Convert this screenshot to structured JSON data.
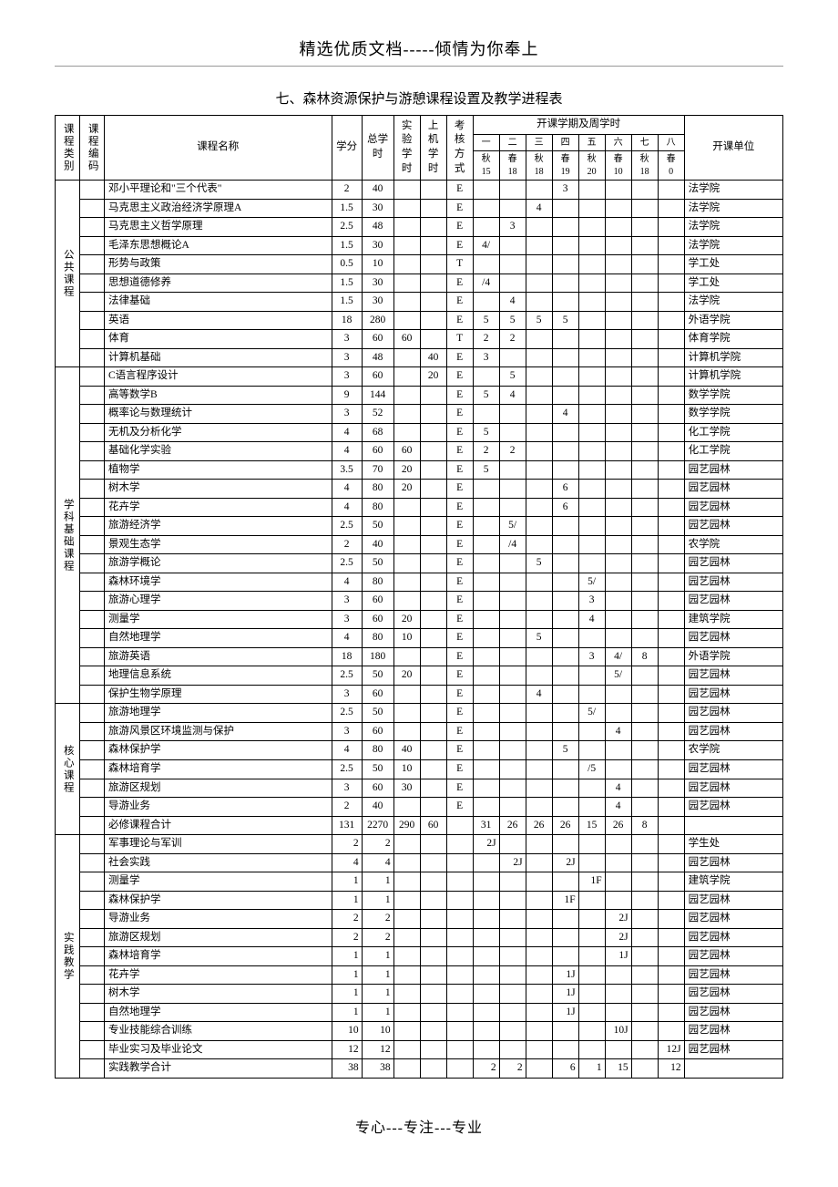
{
  "header_top": "精选优质文档-----倾情为你奉上",
  "title": "七、森林资源保护与游憩课程设置及教学进程表",
  "footer": "专心---专注---专业",
  "columns": {
    "category": "课程类别",
    "code": "课程编码",
    "name": "课程名称",
    "credits": "学分",
    "total_hours": "总学时",
    "lab_hours": "实验学时",
    "computer_hours": "上机学时",
    "assess": "考核方式",
    "semesters_group": "开课学期及周学时",
    "unit": "开课单位",
    "sem_labels": [
      "一",
      "二",
      "三",
      "四",
      "五",
      "六",
      "七",
      "八"
    ],
    "sem_seasons": [
      "秋",
      "春",
      "秋",
      "春",
      "秋",
      "春",
      "秋",
      "春"
    ],
    "sem_weeks": [
      "15",
      "18",
      "18",
      "19",
      "20",
      "10",
      "18",
      "0"
    ]
  },
  "sections": [
    {
      "category": "公共课程",
      "align": "center",
      "rows": [
        {
          "name": "邓小平理论和\"三个代表\"",
          "cr": "2",
          "th": "40",
          "lab": "",
          "cp": "",
          "as": "E",
          "s": [
            "",
            "",
            "",
            "3",
            "",
            "",
            "",
            ""
          ],
          "unit": "法学院"
        },
        {
          "name": "马克思主义政治经济学原理A",
          "cr": "1.5",
          "th": "30",
          "lab": "",
          "cp": "",
          "as": "E",
          "s": [
            "",
            "",
            "4",
            "",
            "",
            "",
            "",
            ""
          ],
          "unit": "法学院"
        },
        {
          "name": "马克思主义哲学原理",
          "cr": "2.5",
          "th": "48",
          "lab": "",
          "cp": "",
          "as": "E",
          "s": [
            "",
            "3",
            "",
            "",
            "",
            "",
            "",
            ""
          ],
          "unit": "法学院"
        },
        {
          "name": "毛泽东思想概论A",
          "cr": "1.5",
          "th": "30",
          "lab": "",
          "cp": "",
          "as": "E",
          "s": [
            "4/",
            "",
            "",
            "",
            "",
            "",
            "",
            ""
          ],
          "unit": "法学院"
        },
        {
          "name": "形势与政策",
          "cr": "0.5",
          "th": "10",
          "lab": "",
          "cp": "",
          "as": "T",
          "s": [
            "",
            "",
            "",
            "",
            "",
            "",
            "",
            ""
          ],
          "unit": "学工处"
        },
        {
          "name": "思想道德修养",
          "cr": "1.5",
          "th": "30",
          "lab": "",
          "cp": "",
          "as": "E",
          "s": [
            "/4",
            "",
            "",
            "",
            "",
            "",
            "",
            ""
          ],
          "unit": "学工处"
        },
        {
          "name": "法律基础",
          "cr": "1.5",
          "th": "30",
          "lab": "",
          "cp": "",
          "as": "E",
          "s": [
            "",
            "4",
            "",
            "",
            "",
            "",
            "",
            ""
          ],
          "unit": "法学院"
        },
        {
          "name": "英语",
          "cr": "18",
          "th": "280",
          "lab": "",
          "cp": "",
          "as": "E",
          "s": [
            "5",
            "5",
            "5",
            "5",
            "",
            "",
            "",
            ""
          ],
          "unit": "外语学院"
        },
        {
          "name": "体育",
          "cr": "3",
          "th": "60",
          "lab": "60",
          "cp": "",
          "as": "T",
          "s": [
            "2",
            "2",
            "",
            "",
            "",
            "",
            "",
            ""
          ],
          "unit": "体育学院"
        },
        {
          "name": "计算机基础",
          "cr": "3",
          "th": "48",
          "lab": "",
          "cp": "40",
          "as": "E",
          "s": [
            "3",
            "",
            "",
            "",
            "",
            "",
            "",
            ""
          ],
          "unit": "计算机学院"
        }
      ]
    },
    {
      "category": "学科基础课程",
      "align": "center",
      "rows": [
        {
          "name": "C语言程序设计",
          "cr": "3",
          "th": "60",
          "lab": "",
          "cp": "20",
          "as": "E",
          "s": [
            "",
            "5",
            "",
            "",
            "",
            "",
            "",
            ""
          ],
          "unit": "计算机学院"
        },
        {
          "name": "高等数学B",
          "cr": "9",
          "th": "144",
          "lab": "",
          "cp": "",
          "as": "E",
          "s": [
            "5",
            "4",
            "",
            "",
            "",
            "",
            "",
            ""
          ],
          "unit": "数学学院"
        },
        {
          "name": "概率论与数理统计",
          "cr": "3",
          "th": "52",
          "lab": "",
          "cp": "",
          "as": "E",
          "s": [
            "",
            "",
            "",
            "4",
            "",
            "",
            "",
            ""
          ],
          "unit": "数学学院"
        },
        {
          "name": "无机及分析化学",
          "cr": "4",
          "th": "68",
          "lab": "",
          "cp": "",
          "as": "E",
          "s": [
            "5",
            "",
            "",
            "",
            "",
            "",
            "",
            ""
          ],
          "unit": "化工学院"
        },
        {
          "name": "基础化学实验",
          "cr": "4",
          "th": "60",
          "lab": "60",
          "cp": "",
          "as": "E",
          "s": [
            "2",
            "2",
            "",
            "",
            "",
            "",
            "",
            ""
          ],
          "unit": "化工学院"
        },
        {
          "name": "植物学",
          "cr": "3.5",
          "th": "70",
          "lab": "20",
          "cp": "",
          "as": "E",
          "s": [
            "5",
            "",
            "",
            "",
            "",
            "",
            "",
            ""
          ],
          "unit": "园艺园林"
        },
        {
          "name": "树木学",
          "cr": "4",
          "th": "80",
          "lab": "20",
          "cp": "",
          "as": "E",
          "s": [
            "",
            "",
            "",
            "6",
            "",
            "",
            "",
            ""
          ],
          "unit": "园艺园林"
        },
        {
          "name": "花卉学",
          "cr": "4",
          "th": "80",
          "lab": "",
          "cp": "",
          "as": "E",
          "s": [
            "",
            "",
            "",
            "6",
            "",
            "",
            "",
            ""
          ],
          "unit": "园艺园林"
        },
        {
          "name": "旅游经济学",
          "cr": "2.5",
          "th": "50",
          "lab": "",
          "cp": "",
          "as": "E",
          "s": [
            "",
            "5/",
            "",
            "",
            "",
            "",
            "",
            ""
          ],
          "unit": "园艺园林"
        },
        {
          "name": "景观生态学",
          "cr": "2",
          "th": "40",
          "lab": "",
          "cp": "",
          "as": "E",
          "s": [
            "",
            "/4",
            "",
            "",
            "",
            "",
            "",
            ""
          ],
          "unit": "农学院"
        },
        {
          "name": "旅游学概论",
          "cr": "2.5",
          "th": "50",
          "lab": "",
          "cp": "",
          "as": "E",
          "s": [
            "",
            "",
            "5",
            "",
            "",
            "",
            "",
            ""
          ],
          "unit": "园艺园林"
        },
        {
          "name": "森林环境学",
          "cr": "4",
          "th": "80",
          "lab": "",
          "cp": "",
          "as": "E",
          "s": [
            "",
            "",
            "",
            "",
            "5/",
            "",
            "",
            ""
          ],
          "unit": "园艺园林"
        },
        {
          "name": "旅游心理学",
          "cr": "3",
          "th": "60",
          "lab": "",
          "cp": "",
          "as": "E",
          "s": [
            "",
            "",
            "",
            "",
            "3",
            "",
            "",
            ""
          ],
          "unit": "园艺园林"
        },
        {
          "name": "测量学",
          "cr": "3",
          "th": "60",
          "lab": "20",
          "cp": "",
          "as": "E",
          "s": [
            "",
            "",
            "",
            "",
            "4",
            "",
            "",
            ""
          ],
          "unit": "建筑学院"
        },
        {
          "name": "自然地理学",
          "cr": "4",
          "th": "80",
          "lab": "10",
          "cp": "",
          "as": "E",
          "s": [
            "",
            "",
            "5",
            "",
            "",
            "",
            "",
            ""
          ],
          "unit": "园艺园林"
        },
        {
          "name": "旅游英语",
          "cr": "18",
          "th": "180",
          "lab": "",
          "cp": "",
          "as": "E",
          "s": [
            "",
            "",
            "",
            "",
            "3",
            "4/",
            "8",
            ""
          ],
          "unit": "外语学院"
        },
        {
          "name": "地理信息系统",
          "cr": "2.5",
          "th": "50",
          "lab": "20",
          "cp": "",
          "as": "E",
          "s": [
            "",
            "",
            "",
            "",
            "",
            "5/",
            "",
            ""
          ],
          "unit": "园艺园林"
        },
        {
          "name": "保护生物学原理",
          "cr": "3",
          "th": "60",
          "lab": "",
          "cp": "",
          "as": "E",
          "s": [
            "",
            "",
            "4",
            "",
            "",
            "",
            "",
            ""
          ],
          "unit": "园艺园林"
        }
      ]
    },
    {
      "category": "核心课程",
      "align": "center",
      "rows": [
        {
          "name": "旅游地理学",
          "cr": "2.5",
          "th": "50",
          "lab": "",
          "cp": "",
          "as": "E",
          "s": [
            "",
            "",
            "",
            "",
            "5/",
            "",
            "",
            ""
          ],
          "unit": "园艺园林"
        },
        {
          "name": "旅游风景区环境监测与保护",
          "cr": "3",
          "th": "60",
          "lab": "",
          "cp": "",
          "as": "E",
          "s": [
            "",
            "",
            "",
            "",
            "",
            "4",
            "",
            ""
          ],
          "unit": "园艺园林"
        },
        {
          "name": "森林保护学",
          "cr": "4",
          "th": "80",
          "lab": "40",
          "cp": "",
          "as": "E",
          "s": [
            "",
            "",
            "",
            "5",
            "",
            "",
            "",
            ""
          ],
          "unit": "农学院"
        },
        {
          "name": "森林培育学",
          "cr": "2.5",
          "th": "50",
          "lab": "10",
          "cp": "",
          "as": "E",
          "s": [
            "",
            "",
            "",
            "",
            "/5",
            "",
            "",
            ""
          ],
          "unit": "园艺园林"
        },
        {
          "name": "旅游区规划",
          "cr": "3",
          "th": "60",
          "lab": "30",
          "cp": "",
          "as": "E",
          "s": [
            "",
            "",
            "",
            "",
            "",
            "4",
            "",
            ""
          ],
          "unit": "园艺园林"
        },
        {
          "name": "导游业务",
          "cr": "2",
          "th": "40",
          "lab": "",
          "cp": "",
          "as": "E",
          "s": [
            "",
            "",
            "",
            "",
            "",
            "4",
            "",
            ""
          ],
          "unit": "园艺园林"
        },
        {
          "name": "必修课程合计",
          "cr": "131",
          "th": "2270",
          "lab": "290",
          "cp": "60",
          "as": "",
          "s": [
            "31",
            "26",
            "26",
            "26",
            "15",
            "26",
            "8",
            ""
          ],
          "unit": ""
        }
      ]
    },
    {
      "category": "实践教学",
      "align": "right",
      "rows": [
        {
          "name": "军事理论与军训",
          "cr": "2",
          "th": "2",
          "lab": "",
          "cp": "",
          "as": "",
          "s": [
            "2J",
            "",
            "",
            "",
            "",
            "",
            "",
            ""
          ],
          "unit": "学生处"
        },
        {
          "name": "社会实践",
          "cr": "4",
          "th": "4",
          "lab": "",
          "cp": "",
          "as": "",
          "s": [
            "",
            "2J",
            "",
            "2J",
            "",
            "",
            "",
            ""
          ],
          "unit": "园艺园林"
        },
        {
          "name": "测量学",
          "cr": "1",
          "th": "1",
          "lab": "",
          "cp": "",
          "as": "",
          "s": [
            "",
            "",
            "",
            "",
            "1F",
            "",
            "",
            ""
          ],
          "unit": "建筑学院"
        },
        {
          "name": "森林保护学",
          "cr": "1",
          "th": "1",
          "lab": "",
          "cp": "",
          "as": "",
          "s": [
            "",
            "",
            "",
            "1F",
            "",
            "",
            "",
            ""
          ],
          "unit": "园艺园林"
        },
        {
          "name": "导游业务",
          "cr": "2",
          "th": "2",
          "lab": "",
          "cp": "",
          "as": "",
          "s": [
            "",
            "",
            "",
            "",
            "",
            "2J",
            "",
            ""
          ],
          "unit": "园艺园林"
        },
        {
          "name": "旅游区规划",
          "cr": "2",
          "th": "2",
          "lab": "",
          "cp": "",
          "as": "",
          "s": [
            "",
            "",
            "",
            "",
            "",
            "2J",
            "",
            ""
          ],
          "unit": "园艺园林"
        },
        {
          "name": "森林培育学",
          "cr": "1",
          "th": "1",
          "lab": "",
          "cp": "",
          "as": "",
          "s": [
            "",
            "",
            "",
            "",
            "",
            "1J",
            "",
            ""
          ],
          "unit": "园艺园林"
        },
        {
          "name": "花卉学",
          "cr": "1",
          "th": "1",
          "lab": "",
          "cp": "",
          "as": "",
          "s": [
            "",
            "",
            "",
            "1J",
            "",
            "",
            "",
            ""
          ],
          "unit": "园艺园林"
        },
        {
          "name": "树木学",
          "cr": "1",
          "th": "1",
          "lab": "",
          "cp": "",
          "as": "",
          "s": [
            "",
            "",
            "",
            "1J",
            "",
            "",
            "",
            ""
          ],
          "unit": "园艺园林"
        },
        {
          "name": "自然地理学",
          "cr": "1",
          "th": "1",
          "lab": "",
          "cp": "",
          "as": "",
          "s": [
            "",
            "",
            "",
            "1J",
            "",
            "",
            "",
            ""
          ],
          "unit": "园艺园林"
        },
        {
          "name": "专业技能综合训练",
          "cr": "10",
          "th": "10",
          "lab": "",
          "cp": "",
          "as": "",
          "s": [
            "",
            "",
            "",
            "",
            "",
            "10J",
            "",
            ""
          ],
          "unit": "园艺园林"
        },
        {
          "name": "毕业实习及毕业论文",
          "cr": "12",
          "th": "12",
          "lab": "",
          "cp": "",
          "as": "",
          "s": [
            "",
            "",
            "",
            "",
            "",
            "",
            "",
            "12J"
          ],
          "unit": "园艺园林"
        },
        {
          "name": "实践教学合计",
          "cr": "38",
          "th": "38",
          "lab": "",
          "cp": "",
          "as": "",
          "s": [
            "2",
            "2",
            "",
            "6",
            "1",
            "15",
            "",
            "12"
          ],
          "unit": ""
        }
      ]
    }
  ]
}
